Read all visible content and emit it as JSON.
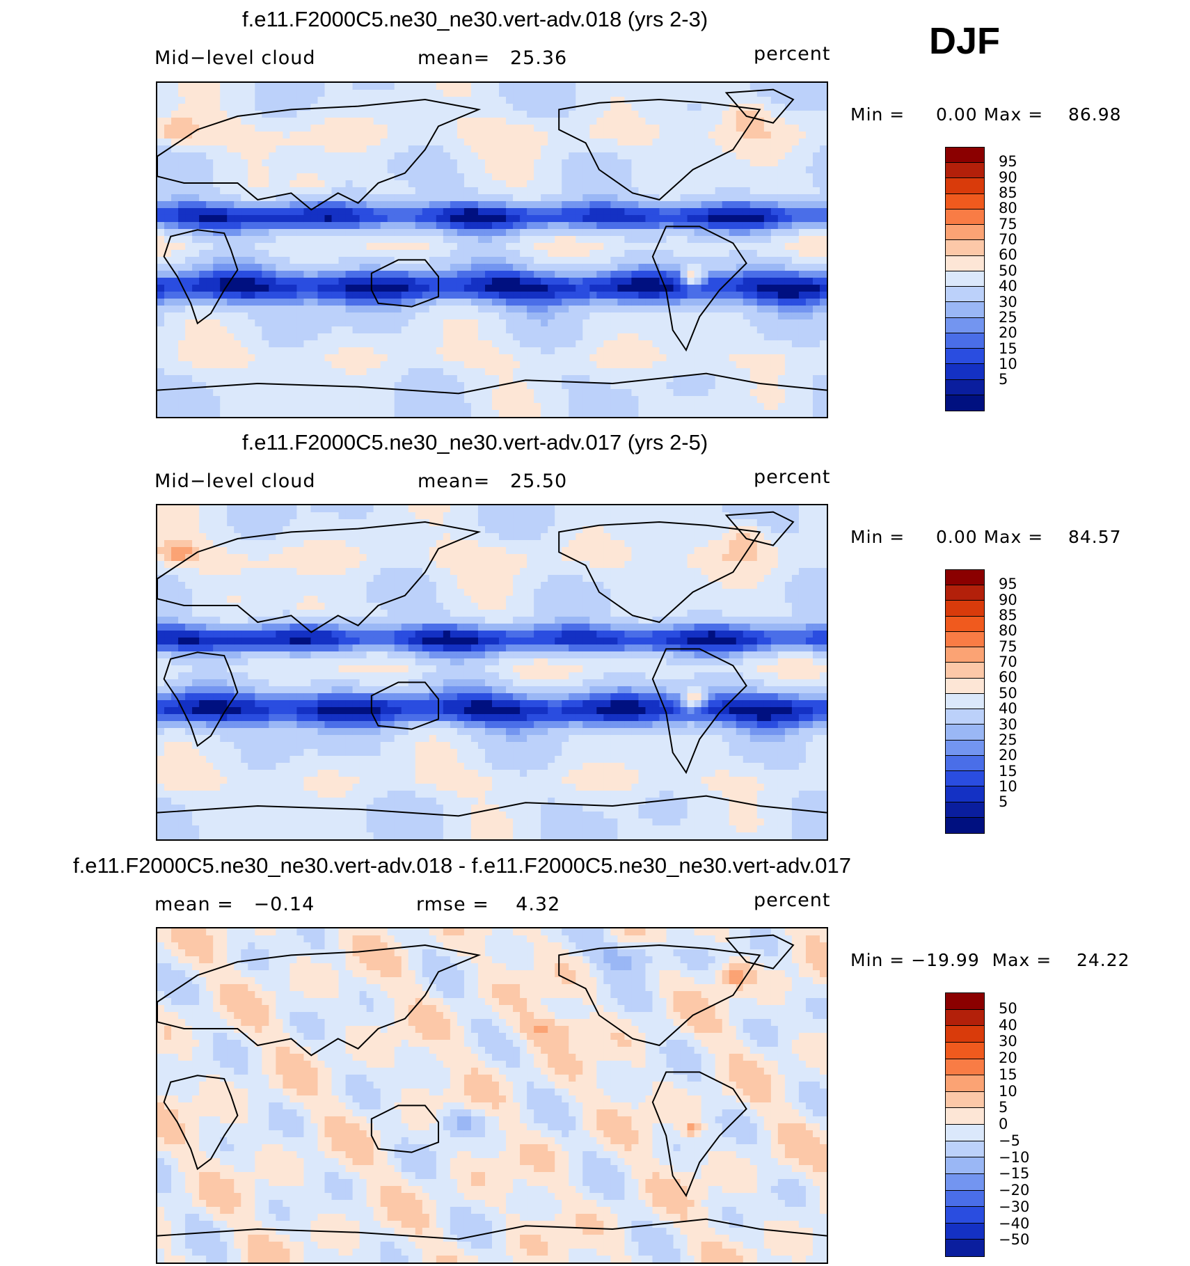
{
  "season": "DJF",
  "panels": [
    {
      "title": "f.e11.F2000C5.ne30_ne30.vert-adv.018 (yrs 2-3)",
      "left_label": "Mid−level cloud",
      "center_label": "mean=   25.36",
      "right_label": "percent",
      "minmax": "Min =     0.00 Max =    86.98",
      "field": "model",
      "colorbar": {
        "colors": [
          "#8b0000",
          "#b3200a",
          "#d93b0b",
          "#f05a1e",
          "#f97c45",
          "#fba374",
          "#fcc8a8",
          "#fde6d6",
          "#dbe8fb",
          "#bcd1fa",
          "#9ab7f5",
          "#7395f0",
          "#4a6ee8",
          "#2a4de0",
          "#1431c4",
          "#0a1e9e",
          "#001080"
        ],
        "labels": [
          "95",
          "90",
          "85",
          "80",
          "75",
          "70",
          "60",
          "50",
          "40",
          "30",
          "25",
          "20",
          "15",
          "10",
          "5"
        ]
      }
    },
    {
      "title": "f.e11.F2000C5.ne30_ne30.vert-adv.017 (yrs 2-5)",
      "left_label": "Mid−level cloud",
      "center_label": "mean=   25.50",
      "right_label": "percent",
      "minmax": "Min =     0.00 Max =    84.57",
      "field": "model",
      "colorbar": {
        "colors": [
          "#8b0000",
          "#b3200a",
          "#d93b0b",
          "#f05a1e",
          "#f97c45",
          "#fba374",
          "#fcc8a8",
          "#fde6d6",
          "#dbe8fb",
          "#bcd1fa",
          "#9ab7f5",
          "#7395f0",
          "#4a6ee8",
          "#2a4de0",
          "#1431c4",
          "#0a1e9e",
          "#001080"
        ],
        "labels": [
          "95",
          "90",
          "85",
          "80",
          "75",
          "70",
          "60",
          "50",
          "40",
          "30",
          "25",
          "20",
          "15",
          "10",
          "5"
        ]
      }
    },
    {
      "title": "f.e11.F2000C5.ne30_ne30.vert-adv.018 - f.e11.F2000C5.ne30_ne30.vert-adv.017",
      "left_label": "mean =   −0.14",
      "center_label": "rmse =    4.32",
      "right_label": "percent",
      "minmax": "Min = −19.99  Max =    24.22",
      "field": "diff",
      "colorbar": {
        "colors": [
          "#8b0000",
          "#b3200a",
          "#d93b0b",
          "#f05a1e",
          "#f97c45",
          "#fba374",
          "#fcc8a8",
          "#fde6d6",
          "#dbe8fb",
          "#bcd1fa",
          "#9ab7f5",
          "#7395f0",
          "#4a6ee8",
          "#2a4de0",
          "#1431c4",
          "#0a1e9e"
        ],
        "labels": [
          "50",
          "40",
          "30",
          "20",
          "15",
          "10",
          "5",
          "0",
          "−5",
          "−10",
          "−15",
          "−20",
          "−30",
          "−40",
          "−50"
        ]
      }
    }
  ]
}
